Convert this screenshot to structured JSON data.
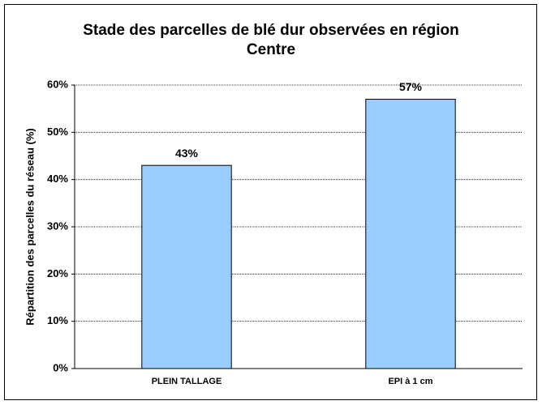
{
  "chart_data": {
    "type": "bar",
    "title": "Stade des parcelles de blé dur observées en région Centre",
    "ylabel": "Répartition des parcelles du réseau (%)",
    "categories": [
      "PLEIN TALLAGE",
      "EPI à 1 cm"
    ],
    "values": [
      43,
      57
    ],
    "value_labels": [
      "43%",
      "57%"
    ],
    "color": "#99ccff",
    "ylim": [
      0,
      60
    ],
    "yticks": [
      {
        "value": 0,
        "label": "0%"
      },
      {
        "value": 10,
        "label": "10%"
      },
      {
        "value": 20,
        "label": "20%"
      },
      {
        "value": 30,
        "label": "30%"
      },
      {
        "value": 40,
        "label": "40%"
      },
      {
        "value": 50,
        "label": "50%"
      },
      {
        "value": 60,
        "label": "60%"
      }
    ],
    "grid": true
  }
}
